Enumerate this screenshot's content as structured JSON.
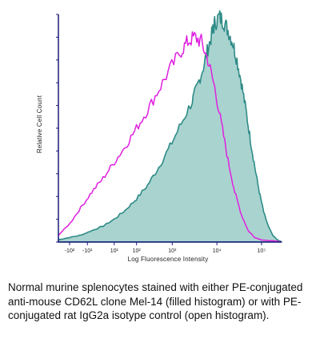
{
  "chart_data": {
    "type": "area",
    "xlabel": "Log Fluorescence Intensity",
    "ylabel": "Relative Cell Count",
    "x_scale": "biexponential",
    "x_ticks": [
      "-10²",
      "-10¹",
      "10¹",
      "10²",
      "10³",
      "10⁴",
      "10⁵"
    ],
    "ylim": [
      0,
      100
    ],
    "grid": false,
    "series": [
      {
        "style": "filled",
        "color": "#2e8b87",
        "fill": "#a9d3cf",
        "points": [
          [
            0.0,
            1
          ],
          [
            0.05,
            2
          ],
          [
            0.1,
            3
          ],
          [
            0.15,
            5
          ],
          [
            0.2,
            7
          ],
          [
            0.25,
            10
          ],
          [
            0.3,
            14
          ],
          [
            0.35,
            19
          ],
          [
            0.4,
            25
          ],
          [
            0.45,
            33
          ],
          [
            0.5,
            42
          ],
          [
            0.55,
            52
          ],
          [
            0.6,
            62
          ],
          [
            0.62,
            68
          ],
          [
            0.65,
            77
          ],
          [
            0.67,
            85
          ],
          [
            0.69,
            92
          ],
          [
            0.7,
            96
          ],
          [
            0.72,
            99
          ],
          [
            0.74,
            97
          ],
          [
            0.76,
            93
          ],
          [
            0.78,
            88
          ],
          [
            0.8,
            80
          ],
          [
            0.82,
            70
          ],
          [
            0.84,
            58
          ],
          [
            0.86,
            45
          ],
          [
            0.88,
            33
          ],
          [
            0.9,
            22
          ],
          [
            0.92,
            13
          ],
          [
            0.94,
            7
          ],
          [
            0.96,
            3
          ],
          [
            0.98,
            1
          ],
          [
            1.0,
            0
          ]
        ]
      },
      {
        "style": "open",
        "color": "#e020e0",
        "points": [
          [
            0.0,
            3
          ],
          [
            0.05,
            8
          ],
          [
            0.1,
            15
          ],
          [
            0.15,
            22
          ],
          [
            0.2,
            28
          ],
          [
            0.25,
            35
          ],
          [
            0.3,
            42
          ],
          [
            0.35,
            50
          ],
          [
            0.4,
            58
          ],
          [
            0.45,
            67
          ],
          [
            0.5,
            76
          ],
          [
            0.55,
            84
          ],
          [
            0.58,
            88
          ],
          [
            0.61,
            90
          ],
          [
            0.64,
            88
          ],
          [
            0.67,
            80
          ],
          [
            0.7,
            68
          ],
          [
            0.73,
            52
          ],
          [
            0.76,
            36
          ],
          [
            0.79,
            22
          ],
          [
            0.82,
            12
          ],
          [
            0.85,
            5
          ],
          [
            0.88,
            2
          ],
          [
            0.91,
            1
          ],
          [
            1.0,
            0
          ]
        ]
      }
    ]
  },
  "caption": "Normal murine splenocytes stained with either PE-conjugated anti-mouse CD62L clone Mel-14 (filled histogram) or with PE-conjugated rat IgG2a isotype control (open histogram)."
}
